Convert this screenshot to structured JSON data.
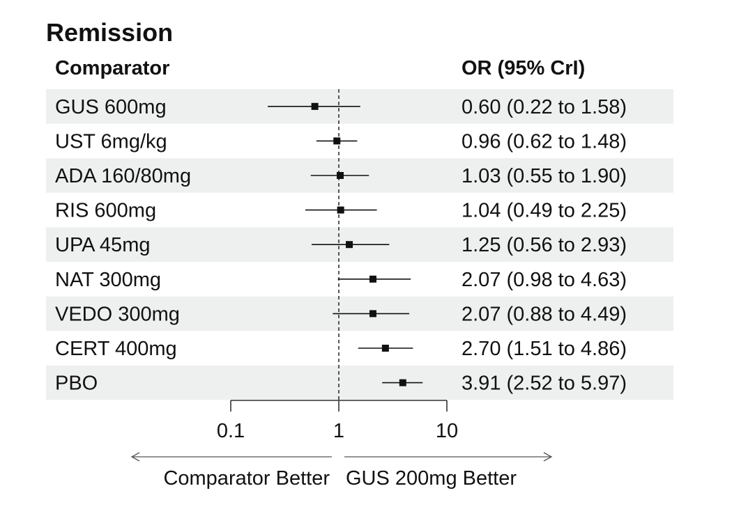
{
  "chart_data": {
    "type": "forest",
    "title": "Remission",
    "column_headers": {
      "comparator": "Comparator",
      "estimate": "OR (95% CrI)"
    },
    "x_scale": "log",
    "xlim": [
      0.1,
      10
    ],
    "x_ticks": [
      {
        "value": 0.1,
        "label": "0.1"
      },
      {
        "value": 1,
        "label": "1"
      },
      {
        "value": 10,
        "label": "10"
      }
    ],
    "reference_line": 1,
    "rows": [
      {
        "label": "GUS 600mg",
        "or": 0.6,
        "lower": 0.22,
        "upper": 1.58,
        "text": "0.60 (0.22 to 1.58)"
      },
      {
        "label": "UST 6mg/kg",
        "or": 0.96,
        "lower": 0.62,
        "upper": 1.48,
        "text": "0.96 (0.62 to 1.48)"
      },
      {
        "label": "ADA 160/80mg",
        "or": 1.03,
        "lower": 0.55,
        "upper": 1.9,
        "text": "1.03 (0.55 to 1.90)"
      },
      {
        "label": "RIS 600mg",
        "or": 1.04,
        "lower": 0.49,
        "upper": 2.25,
        "text": "1.04 (0.49 to 2.25)"
      },
      {
        "label": "UPA 45mg",
        "or": 1.25,
        "lower": 0.56,
        "upper": 2.93,
        "text": "1.25 (0.56 to 2.93)"
      },
      {
        "label": "NAT 300mg",
        "or": 2.07,
        "lower": 0.98,
        "upper": 4.63,
        "text": "2.07 (0.98 to 4.63)"
      },
      {
        "label": "VEDO 300mg",
        "or": 2.07,
        "lower": 0.88,
        "upper": 4.49,
        "text": "2.07 (0.88 to 4.49)"
      },
      {
        "label": "CERT 400mg",
        "or": 2.7,
        "lower": 1.51,
        "upper": 4.86,
        "text": "2.70 (1.51 to 4.86)"
      },
      {
        "label": "PBO",
        "or": 3.91,
        "lower": 2.52,
        "upper": 5.97,
        "text": "3.91 (2.52 to 5.97)"
      }
    ],
    "direction_labels": {
      "left": "Comparator Better",
      "right": "GUS 200mg Better"
    },
    "colors": {
      "stripe": "#eef0ef",
      "marker": "#111111",
      "axis": "#333333",
      "arrow": "#555555"
    }
  }
}
